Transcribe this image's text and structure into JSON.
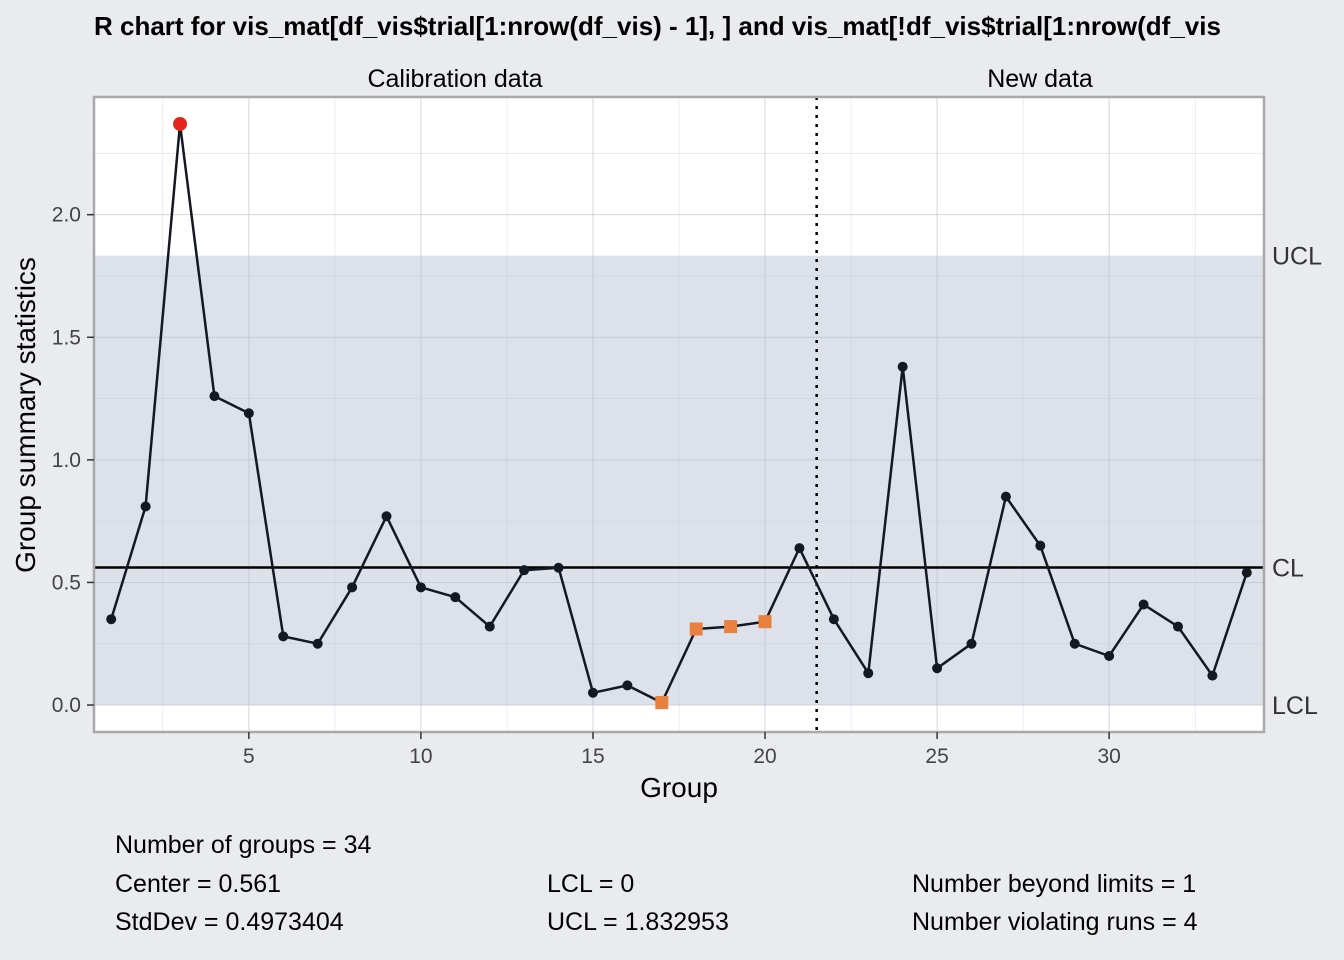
{
  "chart_data": {
    "type": "line",
    "title": "R chart for vis_mat[df_vis$trial[1:nrow(df_vis) - 1], ] and vis_mat[!df_vis$trial[1:nrow(df_vis",
    "xlabel": "Group",
    "ylabel": "Group summary statistics",
    "xlim": [
      0.5,
      34.5
    ],
    "ylim": [
      -0.11,
      2.48
    ],
    "x_ticks": [
      5,
      10,
      15,
      20,
      25,
      30
    ],
    "y_ticks": [
      0.0,
      0.5,
      1.0,
      1.5,
      2.0
    ],
    "y_tick_labels": [
      "0.0",
      "0.5",
      "1.0",
      "1.5",
      "2.0"
    ],
    "sections": [
      {
        "label": "Calibration data",
        "from": 1,
        "to": 21
      },
      {
        "label": "New data",
        "from": 22,
        "to": 34
      }
    ],
    "divider_x": 21.5,
    "x": [
      1,
      2,
      3,
      4,
      5,
      6,
      7,
      8,
      9,
      10,
      11,
      12,
      13,
      14,
      15,
      16,
      17,
      18,
      19,
      20,
      21,
      22,
      23,
      24,
      25,
      26,
      27,
      28,
      29,
      30,
      31,
      32,
      33,
      34
    ],
    "values": [
      0.35,
      0.81,
      2.37,
      1.26,
      1.19,
      0.28,
      0.25,
      0.48,
      0.77,
      0.48,
      0.44,
      0.32,
      0.55,
      0.56,
      0.05,
      0.08,
      0.01,
      0.31,
      0.32,
      0.34,
      0.64,
      0.35,
      0.13,
      1.38,
      0.15,
      0.25,
      0.85,
      0.65,
      0.25,
      0.2,
      0.41,
      0.32,
      0.12,
      0.54
    ],
    "beyond_limits": [
      3
    ],
    "violating_runs": [
      17,
      18,
      19,
      20
    ],
    "limits": {
      "UCL": 1.832953,
      "CL": 0.561,
      "LCL": 0
    },
    "limit_labels": {
      "ucl": "UCL",
      "cl": "CL",
      "lcl": "LCL"
    },
    "colors": {
      "background": "#EAEBEF",
      "panel": "#FFFFFF",
      "control_band": "#DCE1EA",
      "line": "#141821",
      "beyond_limits": "#E3261C",
      "violating_runs": "#E8803F"
    }
  },
  "stats": {
    "groups": "Number of groups = 34",
    "center": "Center = 0.561",
    "stddev": "StdDev = 0.4973404",
    "lcl": "LCL = 0",
    "ucl": "UCL = 1.832953",
    "beyond": "Number beyond limits = 1",
    "runs": "Number violating runs = 4"
  }
}
